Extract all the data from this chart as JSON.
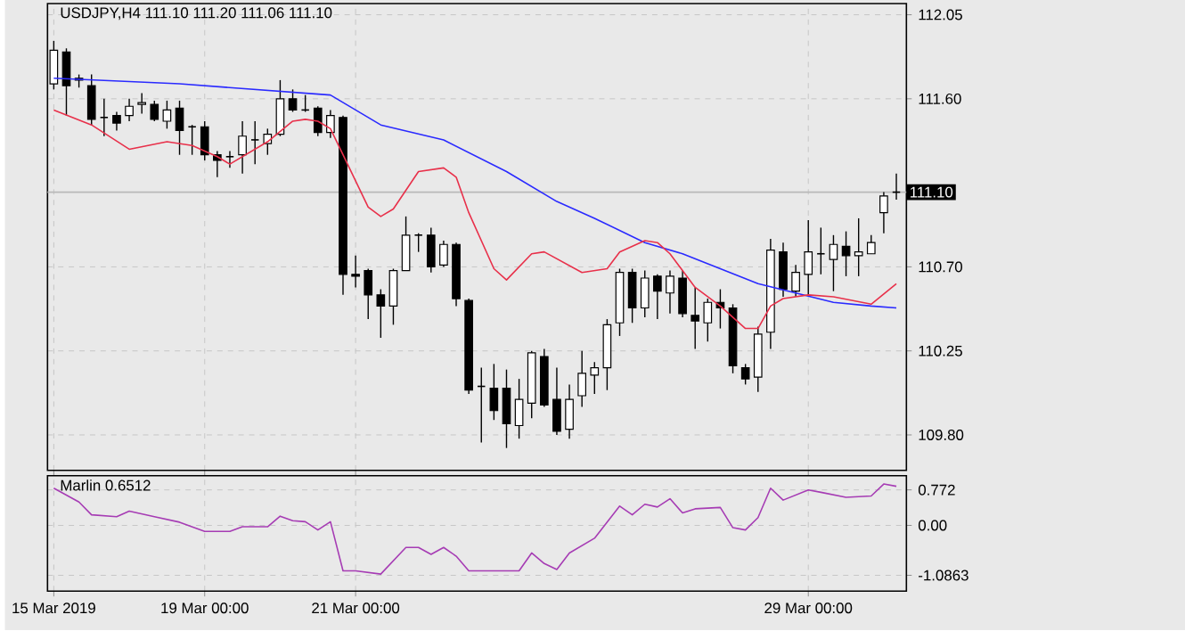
{
  "chart_data": [
    {
      "type": "candlestick",
      "title": "USDJPY,H4 111.10 111.20 111.06 111.10",
      "categories": [
        null,
        null,
        null,
        null,
        null,
        null,
        null,
        null,
        null,
        null,
        null,
        null,
        null,
        null,
        null,
        null,
        null,
        null,
        null,
        null,
        null,
        null,
        null,
        null,
        null,
        null,
        null,
        null,
        null,
        null,
        null,
        null,
        null,
        null,
        null,
        null,
        null,
        null,
        null,
        null,
        null,
        null,
        null,
        null,
        null,
        null,
        null,
        null,
        null,
        null,
        null,
        null,
        null,
        null,
        null,
        null,
        null,
        null,
        null,
        null,
        null,
        null,
        null,
        null,
        null,
        null,
        null,
        null
      ],
      "ohlc": [
        [
          111.68,
          111.91,
          111.65,
          111.86
        ],
        [
          111.85,
          111.87,
          111.51,
          111.67
        ],
        [
          111.71,
          111.73,
          111.66,
          111.7
        ],
        [
          111.67,
          111.73,
          111.46,
          111.49
        ],
        [
          111.5,
          111.6,
          111.4,
          111.5
        ],
        [
          111.51,
          111.53,
          111.43,
          111.47
        ],
        [
          111.51,
          111.6,
          111.48,
          111.56
        ],
        [
          111.57,
          111.63,
          111.52,
          111.58
        ],
        [
          111.57,
          111.59,
          111.48,
          111.49
        ],
        [
          111.48,
          111.59,
          111.44,
          111.54
        ],
        [
          111.55,
          111.59,
          111.3,
          111.43
        ],
        [
          111.45,
          111.46,
          111.3,
          111.45
        ],
        [
          111.45,
          111.48,
          111.27,
          111.3
        ],
        [
          111.3,
          111.32,
          111.18,
          111.27
        ],
        [
          111.29,
          111.32,
          111.23,
          111.29
        ],
        [
          111.3,
          111.48,
          111.2,
          111.4
        ],
        [
          111.38,
          111.48,
          111.25,
          111.38
        ],
        [
          111.36,
          111.44,
          111.3,
          111.41
        ],
        [
          111.41,
          111.7,
          111.4,
          111.6
        ],
        [
          111.6,
          111.65,
          111.53,
          111.54
        ],
        [
          111.54,
          111.62,
          111.53,
          111.54
        ],
        [
          111.55,
          111.56,
          111.4,
          111.42
        ],
        [
          111.42,
          111.54,
          111.39,
          111.51
        ],
        [
          111.5,
          111.51,
          110.55,
          110.66
        ],
        [
          110.66,
          110.76,
          110.59,
          110.65
        ],
        [
          110.68,
          110.69,
          110.42,
          110.55
        ],
        [
          110.55,
          110.58,
          110.32,
          110.49
        ],
        [
          110.49,
          110.69,
          110.39,
          110.68
        ],
        [
          110.68,
          110.97,
          110.68,
          110.87
        ],
        [
          110.87,
          110.88,
          110.78,
          110.87
        ],
        [
          110.87,
          110.91,
          110.67,
          110.7
        ],
        [
          110.71,
          110.84,
          110.7,
          110.82
        ],
        [
          110.82,
          110.83,
          110.49,
          110.53
        ],
        [
          110.52,
          110.53,
          110.02,
          110.04
        ],
        [
          110.06,
          110.16,
          109.76,
          110.06
        ],
        [
          110.05,
          110.18,
          109.88,
          109.93
        ],
        [
          110.05,
          110.15,
          109.73,
          109.86
        ],
        [
          109.85,
          110.1,
          109.78,
          109.99
        ],
        [
          109.97,
          110.25,
          109.89,
          110.24
        ],
        [
          110.22,
          110.26,
          109.95,
          109.96
        ],
        [
          109.99,
          110.16,
          109.8,
          109.82
        ],
        [
          109.83,
          110.07,
          109.78,
          109.99
        ],
        [
          110.01,
          110.25,
          109.95,
          110.13
        ],
        [
          110.12,
          110.19,
          110.02,
          110.16
        ],
        [
          110.16,
          110.42,
          110.04,
          110.39
        ],
        [
          110.4,
          110.69,
          110.33,
          110.67
        ],
        [
          110.67,
          110.69,
          110.4,
          110.48
        ],
        [
          110.48,
          110.68,
          110.43,
          110.64
        ],
        [
          110.65,
          110.66,
          110.42,
          110.57
        ],
        [
          110.56,
          110.68,
          110.45,
          110.65
        ],
        [
          110.64,
          110.68,
          110.43,
          110.45
        ],
        [
          110.44,
          110.59,
          110.26,
          110.41
        ],
        [
          110.4,
          110.53,
          110.3,
          110.51
        ],
        [
          110.51,
          110.58,
          110.37,
          110.48
        ],
        [
          110.48,
          110.5,
          110.13,
          110.17
        ],
        [
          110.16,
          110.18,
          110.07,
          110.1
        ],
        [
          110.11,
          110.38,
          110.03,
          110.34
        ],
        [
          110.35,
          110.85,
          110.26,
          110.79
        ],
        [
          110.78,
          110.83,
          110.54,
          110.58
        ],
        [
          110.57,
          110.71,
          110.54,
          110.67
        ],
        [
          110.66,
          110.95,
          110.55,
          110.78
        ],
        [
          110.77,
          110.91,
          110.66,
          110.77
        ],
        [
          110.74,
          110.87,
          110.57,
          110.82
        ],
        [
          110.81,
          110.89,
          110.65,
          110.76
        ],
        [
          110.76,
          110.96,
          110.65,
          110.78
        ],
        [
          110.77,
          110.87,
          110.77,
          110.83
        ],
        [
          110.99,
          111.1,
          110.88,
          111.08
        ],
        [
          111.1,
          111.2,
          111.06,
          111.1
        ]
      ],
      "series": [
        {
          "type": "line",
          "color": "#2a2aff",
          "values": [
            111.71,
            null,
            null,
            null,
            null,
            null,
            null,
            null,
            null,
            null,
            111.68,
            null,
            null,
            null,
            null,
            null,
            null,
            null,
            null,
            null,
            null,
            null,
            111.62,
            null,
            null,
            null,
            111.46,
            null,
            null,
            null,
            null,
            111.38,
            null,
            null,
            null,
            null,
            111.21,
            null,
            null,
            null,
            111.05,
            null,
            null,
            110.96,
            null,
            null,
            null,
            110.83,
            null,
            null,
            110.77,
            null,
            null,
            110.69,
            null,
            null,
            110.61,
            null,
            null,
            110.56,
            null,
            null,
            110.51,
            null,
            null,
            110.49,
            null,
            110.48
          ]
        },
        {
          "type": "line",
          "color": "#e8304a",
          "values": [
            111.54,
            null,
            null,
            111.46,
            null,
            null,
            111.33,
            null,
            null,
            111.37,
            null,
            111.35,
            null,
            111.29,
            111.25,
            null,
            null,
            111.37,
            null,
            111.48,
            111.49,
            111.48,
            111.44,
            111.3,
            null,
            111.02,
            110.97,
            111.01,
            null,
            111.21,
            null,
            111.23,
            111.18,
            110.99,
            null,
            110.69,
            110.63,
            null,
            110.77,
            110.78,
            null,
            null,
            110.67,
            null,
            110.69,
            110.78,
            null,
            110.84,
            110.83,
            110.77,
            null,
            110.59,
            null,
            110.49,
            null,
            110.37,
            110.37,
            110.49,
            110.53,
            null,
            110.55,
            null,
            110.54,
            null,
            null,
            110.5,
            null,
            110.61
          ]
        }
      ],
      "ylim": [
        109.61,
        112.11
      ],
      "yticks": [
        112.05,
        {
          "value": 111.6,
          "label": "111.60"
        },
        {
          "value": 110.7,
          "label": "110.70"
        },
        110.25,
        {
          "value": 109.8,
          "label": "109.80"
        }
      ],
      "ref_lines": [
        {
          "axis": "y",
          "value": 111.1,
          "label": "111.10"
        }
      ],
      "grid": true,
      "tick_labels": "y"
    },
    {
      "type": "line",
      "title": "Marlin 0.6512",
      "color": "#a63cb4",
      "categories": [
        "15 Mar 2019",
        null,
        null,
        null,
        null,
        null,
        null,
        null,
        null,
        null,
        null,
        null,
        "19 Mar 00:00",
        null,
        null,
        null,
        null,
        null,
        null,
        null,
        null,
        null,
        null,
        null,
        "21 Mar 00:00",
        null,
        null,
        null,
        null,
        null,
        null,
        null,
        null,
        null,
        null,
        null,
        null,
        null,
        null,
        null,
        null,
        null,
        null,
        null,
        null,
        null,
        null,
        null,
        null,
        null,
        null,
        null,
        null,
        null,
        null,
        null,
        null,
        null,
        null,
        null,
        "29 Mar 00:00",
        null,
        null,
        null,
        null,
        null,
        null,
        null
      ],
      "values": [
        0.81,
        null,
        0.51,
        0.23,
        null,
        0.19,
        0.31,
        null,
        0.19,
        null,
        0.07,
        null,
        -0.13,
        null,
        -0.13,
        -0.03,
        null,
        -0.03,
        0.2,
        0.1,
        0.08,
        -0.1,
        0.08,
        -0.99,
        -0.99,
        null,
        -1.06,
        null,
        -0.48,
        -0.48,
        -0.63,
        -0.48,
        -0.67,
        -0.99,
        null,
        null,
        null,
        -0.99,
        -0.6,
        -0.83,
        -0.96,
        -0.6,
        null,
        -0.28,
        null,
        0.42,
        0.23,
        0.46,
        0.4,
        0.58,
        0.27,
        0.36,
        null,
        0.39,
        -0.05,
        -0.1,
        0.17,
        0.81,
        0.55,
        null,
        0.77,
        0.72,
        null,
        0.61,
        null,
        0.64,
        0.9,
        0.85
      ],
      "ylim": [
        -1.43,
        1.08
      ],
      "yticks": [
        0.772,
        {
          "value": 0,
          "label": "0.00"
        },
        -1.0863
      ],
      "grid": true
    }
  ]
}
